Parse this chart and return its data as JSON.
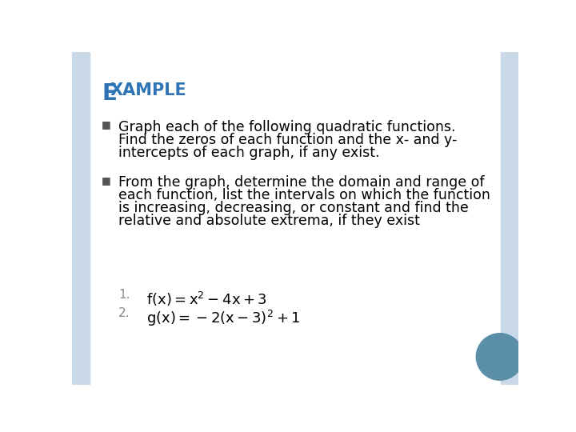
{
  "title_E": "E",
  "title_rest": "XAMPLE",
  "title_color": "#2E74B5",
  "background_color": "#FFFFFF",
  "side_panel_color": "#C9D9E8",
  "circle_color": "#5B8FA8",
  "bullet_color": "#555555",
  "text_color": "#000000",
  "num_color": "#888888",
  "bullet1_lines": [
    "Graph each of the following quadratic functions.",
    "Find the zeros of each function and the x- and y-",
    "intercepts of each graph, if any exist."
  ],
  "bullet2_lines": [
    "From the graph, determine the domain and range of",
    "each function, list the intervals on which the function",
    "is increasing, decreasing, or constant and find the",
    "relative and absolute extrema, if they exist"
  ],
  "font_size_title_big": 20,
  "font_size_title_small": 15,
  "font_size_body": 12.5,
  "font_size_numbered": 13,
  "font_size_super": 9
}
